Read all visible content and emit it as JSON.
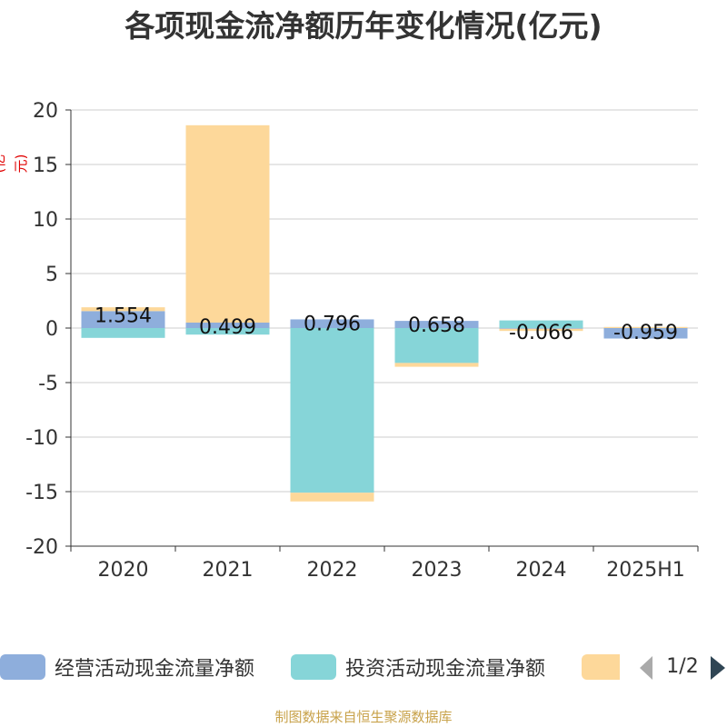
{
  "title": "各项现金流净额历年变化情况(亿元)",
  "unit_label": "(亿元)",
  "colors": {
    "operating": "#8eaedc",
    "investing": "#86d5d8",
    "financing": "#fdd89a",
    "grid": "#cccccc",
    "axis": "#333333",
    "unit": "#e00000",
    "footer": "#c8a24a"
  },
  "legend": {
    "items": [
      {
        "label": "经营活动现金流量净额",
        "color": "#8eaedc"
      },
      {
        "label": "投资活动现金流量净额",
        "color": "#86d5d8"
      },
      {
        "label": "",
        "color": "#fdd89a"
      }
    ],
    "page_indicator": "1/2"
  },
  "footer": "制图数据来自恒生聚源数据库",
  "chart_data": {
    "type": "bar",
    "stacked": true,
    "categories": [
      "2020",
      "2021",
      "2022",
      "2023",
      "2024",
      "2025H1"
    ],
    "ylim": [
      -20,
      20
    ],
    "yticks": [
      20,
      15,
      10,
      5,
      0,
      -5,
      -10,
      -15,
      -20
    ],
    "grid": true,
    "legend_position": "bottom",
    "series": [
      {
        "name": "经营活动现金流量净额",
        "values": [
          1.554,
          0.499,
          0.796,
          0.658,
          -0.066,
          -0.959
        ],
        "labels": [
          "1.554",
          "0.499",
          "0.796",
          "0.658",
          "-0.066",
          "-0.959"
        ]
      },
      {
        "name": "投资活动现金流量净额",
        "values": [
          -0.9,
          -0.6,
          -15.1,
          -3.2,
          0.7,
          0.0
        ]
      },
      {
        "values": [
          0.35,
          18.1,
          -0.8,
          -0.35,
          -0.2,
          0.1
        ]
      }
    ]
  }
}
